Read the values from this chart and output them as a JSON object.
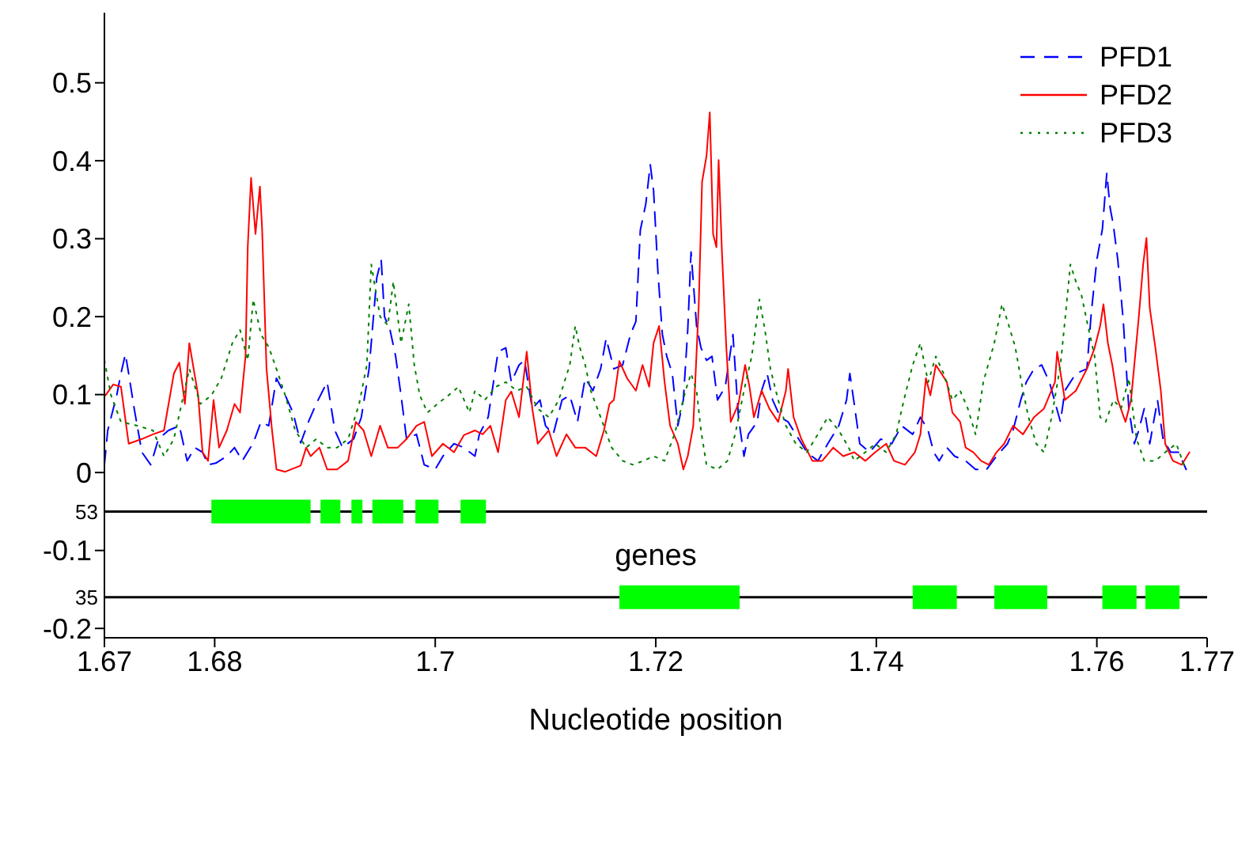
{
  "chart_data": {
    "type": "line",
    "xlabel": "Nucleotide position",
    "xlim": [
      1.67,
      1.77
    ],
    "xticks": [
      1.67,
      1.68,
      1.7,
      1.72,
      1.74,
      1.76,
      1.77
    ],
    "ylim": [
      -0.212,
      0.59
    ],
    "yticks": [
      -0.2,
      -0.1,
      0,
      0.1,
      0.2,
      0.3,
      0.4,
      0.5
    ],
    "legend": "top right",
    "marker": "none",
    "annotations": [
      "genes",
      {
        "text": "53",
        "x": 1.67,
        "y": -0.05
      },
      {
        "text": "35",
        "x": 1.67,
        "y": -0.16
      }
    ],
    "ref_lines": [
      {
        "axis": "y",
        "value": -0.05,
        "color": "#000000"
      },
      {
        "axis": "y",
        "value": -0.16,
        "color": "#000000"
      }
    ],
    "series": [
      {
        "name": "PFD1",
        "color": "#0000ff",
        "line_style": "dashed",
        "x": [
          1.67,
          1.6703,
          1.6711,
          1.6715,
          1.6719,
          1.6722,
          1.6727,
          1.6734,
          1.6742,
          1.6749,
          1.6758,
          1.6768,
          1.6775,
          1.6782,
          1.6789,
          1.6794,
          1.6801,
          1.6811,
          1.6818,
          1.6825,
          1.6835,
          1.6842,
          1.6849,
          1.6856,
          1.6864,
          1.6871,
          1.6878,
          1.6885,
          1.6892,
          1.6902,
          1.6909,
          1.6916,
          1.6926,
          1.6933,
          1.694,
          1.6947,
          1.6951,
          1.6954,
          1.6959,
          1.6964,
          1.6969,
          1.6974,
          1.6983,
          1.699,
          1.7,
          1.7007,
          1.7017,
          1.7026,
          1.7036,
          1.704,
          1.7048,
          1.7057,
          1.7064,
          1.7069,
          1.7076,
          1.7081,
          1.7088,
          1.7095,
          1.71,
          1.7107,
          1.7115,
          1.7122,
          1.7129,
          1.7136,
          1.7143,
          1.715,
          1.7155,
          1.7162,
          1.717,
          1.7177,
          1.7182,
          1.7186,
          1.7191,
          1.7195,
          1.7198,
          1.7202,
          1.7206,
          1.721,
          1.7215,
          1.722,
          1.7225,
          1.7229,
          1.7232,
          1.7237,
          1.7241,
          1.7246,
          1.7251,
          1.7256,
          1.7263,
          1.727,
          1.7275,
          1.728,
          1.7284,
          1.7292,
          1.7296,
          1.7301,
          1.7306,
          1.7313,
          1.732,
          1.7327,
          1.7337,
          1.7347,
          1.7356,
          1.7366,
          1.7373,
          1.7376,
          1.738,
          1.7385,
          1.7394,
          1.7404,
          1.7414,
          1.7423,
          1.7433,
          1.744,
          1.7447,
          1.7452,
          1.7457,
          1.7464,
          1.7471,
          1.7481,
          1.749,
          1.75,
          1.7509,
          1.7519,
          1.7524,
          1.7531,
          1.7536,
          1.7543,
          1.755,
          1.7557,
          1.7567,
          1.7571,
          1.7581,
          1.7591,
          1.7595,
          1.76,
          1.7605,
          1.7609,
          1.7612,
          1.7615,
          1.7619,
          1.7624,
          1.7629,
          1.7634,
          1.7638,
          1.7643,
          1.7648,
          1.7655,
          1.766,
          1.7667,
          1.7674,
          1.7681
        ],
        "values": [
          0.01,
          0.054,
          0.098,
          0.127,
          0.152,
          0.127,
          0.082,
          0.026,
          0.01,
          0.043,
          0.054,
          0.06,
          0.015,
          0.032,
          0.026,
          0.01,
          0.012,
          0.021,
          0.032,
          0.015,
          0.038,
          0.065,
          0.06,
          0.121,
          0.099,
          0.077,
          0.038,
          0.065,
          0.088,
          0.116,
          0.054,
          0.032,
          0.043,
          0.071,
          0.133,
          0.25,
          0.273,
          0.2,
          0.183,
          0.15,
          0.099,
          0.043,
          0.049,
          0.01,
          0.004,
          0.021,
          0.037,
          0.032,
          0.021,
          0.049,
          0.071,
          0.155,
          0.16,
          0.116,
          0.138,
          0.144,
          0.082,
          0.093,
          0.06,
          0.049,
          0.093,
          0.099,
          0.065,
          0.121,
          0.105,
          0.133,
          0.172,
          0.133,
          0.138,
          0.177,
          0.194,
          0.311,
          0.345,
          0.395,
          0.362,
          0.256,
          0.177,
          0.149,
          0.127,
          0.06,
          0.093,
          0.183,
          0.283,
          0.188,
          0.16,
          0.144,
          0.149,
          0.093,
          0.11,
          0.177,
          0.071,
          0.021,
          0.049,
          0.065,
          0.105,
          0.127,
          0.093,
          0.071,
          0.065,
          0.049,
          0.026,
          0.015,
          0.037,
          0.06,
          0.093,
          0.127,
          0.088,
          0.037,
          0.026,
          0.043,
          0.037,
          0.06,
          0.049,
          0.071,
          0.054,
          0.026,
          0.015,
          0.032,
          0.021,
          0.015,
          0.004,
          0.004,
          0.021,
          0.037,
          0.054,
          0.093,
          0.116,
          0.133,
          0.138,
          0.116,
          0.065,
          0.105,
          0.127,
          0.133,
          0.206,
          0.273,
          0.312,
          0.384,
          0.34,
          0.317,
          0.273,
          0.194,
          0.082,
          0.037,
          0.054,
          0.082,
          0.037,
          0.093,
          0.043,
          0.026,
          0.026,
          0.004
        ]
      },
      {
        "name": "PFD2",
        "color": "#ff0000",
        "line_style": "solid",
        "x": [
          1.6701,
          1.6708,
          1.6715,
          1.6722,
          1.6734,
          1.6744,
          1.6754,
          1.6763,
          1.6768,
          1.6773,
          1.6777,
          1.6785,
          1.6789,
          1.6794,
          1.6799,
          1.6804,
          1.6811,
          1.6818,
          1.6823,
          1.6828,
          1.683,
          1.6833,
          1.6837,
          1.6841,
          1.6843,
          1.6847,
          1.6852,
          1.6856,
          1.6864,
          1.6878,
          1.6883,
          1.6887,
          1.6895,
          1.6902,
          1.6911,
          1.6921,
          1.6928,
          1.6935,
          1.6942,
          1.695,
          1.6957,
          1.6966,
          1.6974,
          1.6983,
          1.699,
          1.6997,
          1.7007,
          1.7017,
          1.7026,
          1.7036,
          1.7043,
          1.705,
          1.7057,
          1.7064,
          1.7069,
          1.7076,
          1.7083,
          1.7088,
          1.7093,
          1.7103,
          1.711,
          1.7119,
          1.7127,
          1.7136,
          1.7146,
          1.7153,
          1.7158,
          1.7162,
          1.7167,
          1.7174,
          1.7182,
          1.7188,
          1.7194,
          1.7198,
          1.7203,
          1.7208,
          1.7213,
          1.722,
          1.7225,
          1.7229,
          1.7234,
          1.7239,
          1.7242,
          1.7246,
          1.7249,
          1.7252,
          1.7255,
          1.7257,
          1.726,
          1.7264,
          1.7268,
          1.7275,
          1.7281,
          1.7285,
          1.7289,
          1.7296,
          1.7303,
          1.7311,
          1.7318,
          1.732,
          1.7325,
          1.7332,
          1.7342,
          1.7351,
          1.7361,
          1.737,
          1.738,
          1.739,
          1.7399,
          1.7409,
          1.7416,
          1.7426,
          1.7435,
          1.744,
          1.7445,
          1.7449,
          1.7454,
          1.7459,
          1.7464,
          1.7469,
          1.7476,
          1.7481,
          1.7488,
          1.7495,
          1.7502,
          1.7509,
          1.7516,
          1.7524,
          1.7533,
          1.7543,
          1.7552,
          1.7562,
          1.7564,
          1.7571,
          1.7581,
          1.7591,
          1.7598,
          1.7603,
          1.7606,
          1.761,
          1.7614,
          1.7619,
          1.7626,
          1.7631,
          1.7638,
          1.7642,
          1.7645,
          1.7648,
          1.7653,
          1.7658,
          1.7662,
          1.7669,
          1.7677,
          1.7684
        ],
        "values": [
          0.099,
          0.113,
          0.11,
          0.037,
          0.043,
          0.049,
          0.054,
          0.127,
          0.141,
          0.088,
          0.166,
          0.099,
          0.026,
          0.015,
          0.093,
          0.032,
          0.054,
          0.088,
          0.077,
          0.15,
          0.29,
          0.378,
          0.306,
          0.367,
          0.313,
          0.133,
          0.054,
          0.004,
          0.001,
          0.009,
          0.032,
          0.021,
          0.032,
          0.004,
          0.004,
          0.015,
          0.065,
          0.054,
          0.021,
          0.06,
          0.032,
          0.032,
          0.043,
          0.06,
          0.065,
          0.021,
          0.037,
          0.026,
          0.048,
          0.054,
          0.049,
          0.06,
          0.026,
          0.093,
          0.104,
          0.071,
          0.155,
          0.082,
          0.037,
          0.054,
          0.021,
          0.049,
          0.032,
          0.032,
          0.021,
          0.054,
          0.088,
          0.093,
          0.143,
          0.121,
          0.105,
          0.138,
          0.11,
          0.166,
          0.188,
          0.116,
          0.06,
          0.037,
          0.004,
          0.021,
          0.06,
          0.216,
          0.373,
          0.406,
          0.462,
          0.306,
          0.289,
          0.401,
          0.283,
          0.16,
          0.065,
          0.088,
          0.138,
          0.11,
          0.071,
          0.105,
          0.082,
          0.065,
          0.105,
          0.133,
          0.071,
          0.043,
          0.015,
          0.015,
          0.032,
          0.021,
          0.026,
          0.015,
          0.026,
          0.037,
          0.015,
          0.01,
          0.026,
          0.049,
          0.121,
          0.099,
          0.138,
          0.127,
          0.116,
          0.077,
          0.065,
          0.032,
          0.026,
          0.015,
          0.01,
          0.026,
          0.037,
          0.06,
          0.049,
          0.071,
          0.082,
          0.116,
          0.155,
          0.093,
          0.105,
          0.133,
          0.16,
          0.188,
          0.216,
          0.166,
          0.138,
          0.093,
          0.065,
          0.093,
          0.199,
          0.267,
          0.301,
          0.211,
          0.161,
          0.105,
          0.037,
          0.015,
          0.01,
          0.026
        ]
      },
      {
        "name": "PFD3",
        "color": "#008000",
        "line_style": "dotted",
        "x": [
          1.67,
          1.6706,
          1.6715,
          1.673,
          1.6744,
          1.6754,
          1.6763,
          1.6777,
          1.6787,
          1.6797,
          1.6806,
          1.6816,
          1.6823,
          1.683,
          1.6835,
          1.6842,
          1.6849,
          1.6856,
          1.6864,
          1.6873,
          1.6883,
          1.6892,
          1.6902,
          1.6911,
          1.6921,
          1.6931,
          1.6938,
          1.6942,
          1.695,
          1.6957,
          1.6962,
          1.6969,
          1.6976,
          1.6981,
          1.6986,
          1.6993,
          1.7002,
          1.7012,
          1.7021,
          1.7031,
          1.7036,
          1.7045,
          1.7055,
          1.7064,
          1.7074,
          1.7083,
          1.7093,
          1.7103,
          1.7112,
          1.7122,
          1.7127,
          1.7131,
          1.7136,
          1.7141,
          1.715,
          1.716,
          1.717,
          1.7179,
          1.7189,
          1.7198,
          1.7208,
          1.7217,
          1.7227,
          1.7232,
          1.7237,
          1.7241,
          1.7246,
          1.7256,
          1.7265,
          1.7272,
          1.728,
          1.7287,
          1.7294,
          1.7299,
          1.7304,
          1.7311,
          1.7318,
          1.7327,
          1.7337,
          1.7347,
          1.7356,
          1.7366,
          1.7375,
          1.738,
          1.739,
          1.7399,
          1.7409,
          1.7418,
          1.7425,
          1.7433,
          1.744,
          1.7447,
          1.7454,
          1.7461,
          1.7469,
          1.7476,
          1.7483,
          1.749,
          1.7497,
          1.7507,
          1.7514,
          1.7519,
          1.7526,
          1.7533,
          1.7538,
          1.7545,
          1.7552,
          1.7559,
          1.7567,
          1.7571,
          1.7576,
          1.7581,
          1.7586,
          1.7591,
          1.7598,
          1.7603,
          1.7608,
          1.7615,
          1.7622,
          1.7629,
          1.7636,
          1.7643,
          1.7653,
          1.7662,
          1.7672,
          1.7679
        ],
        "values": [
          0.144,
          0.099,
          0.065,
          0.06,
          0.054,
          0.021,
          0.043,
          0.133,
          0.088,
          0.099,
          0.121,
          0.166,
          0.183,
          0.144,
          0.222,
          0.177,
          0.161,
          0.133,
          0.099,
          0.054,
          0.032,
          0.043,
          0.032,
          0.032,
          0.043,
          0.088,
          0.138,
          0.267,
          0.2,
          0.189,
          0.245,
          0.166,
          0.216,
          0.138,
          0.099,
          0.077,
          0.088,
          0.099,
          0.11,
          0.077,
          0.105,
          0.093,
          0.11,
          0.116,
          0.105,
          0.11,
          0.082,
          0.071,
          0.093,
          0.138,
          0.188,
          0.161,
          0.138,
          0.105,
          0.071,
          0.032,
          0.015,
          0.01,
          0.015,
          0.021,
          0.015,
          0.049,
          0.105,
          0.127,
          0.105,
          0.054,
          0.01,
          0.004,
          0.015,
          0.049,
          0.105,
          0.149,
          0.222,
          0.183,
          0.133,
          0.093,
          0.06,
          0.037,
          0.026,
          0.049,
          0.071,
          0.054,
          0.032,
          0.015,
          0.026,
          0.037,
          0.026,
          0.049,
          0.093,
          0.138,
          0.166,
          0.116,
          0.149,
          0.127,
          0.093,
          0.105,
          0.082,
          0.049,
          0.116,
          0.166,
          0.216,
          0.194,
          0.161,
          0.105,
          0.071,
          0.037,
          0.026,
          0.071,
          0.138,
          0.194,
          0.267,
          0.245,
          0.228,
          0.194,
          0.149,
          0.071,
          0.065,
          0.093,
          0.082,
          0.121,
          0.043,
          0.015,
          0.015,
          0.026,
          0.037,
          0.01
        ]
      },
      {
        "color": "#00ff00",
        "line_style": "solid",
        "x": [
          1.6797,
          1.6887,
          null,
          1.6896,
          1.6914,
          null,
          1.6924,
          1.6934,
          null,
          1.6943,
          1.6971,
          null,
          1.6982,
          1.7003,
          null,
          1.7023,
          1.7046,
          null,
          1.7167,
          1.7276,
          null,
          1.7433,
          1.7473,
          null,
          1.7507,
          1.7555,
          null,
          1.7605,
          1.7636,
          null,
          1.7644,
          1.7675
        ],
        "values": [
          -0.05,
          -0.05,
          null,
          -0.05,
          -0.05,
          null,
          -0.05,
          -0.05,
          null,
          -0.05,
          -0.05,
          null,
          -0.05,
          -0.05,
          null,
          -0.05,
          -0.05,
          null,
          -0.16,
          -0.16,
          null,
          -0.16,
          -0.16,
          null,
          -0.16,
          -0.16,
          null,
          -0.16,
          -0.16,
          null,
          -0.16,
          -0.16
        ]
      }
    ]
  }
}
